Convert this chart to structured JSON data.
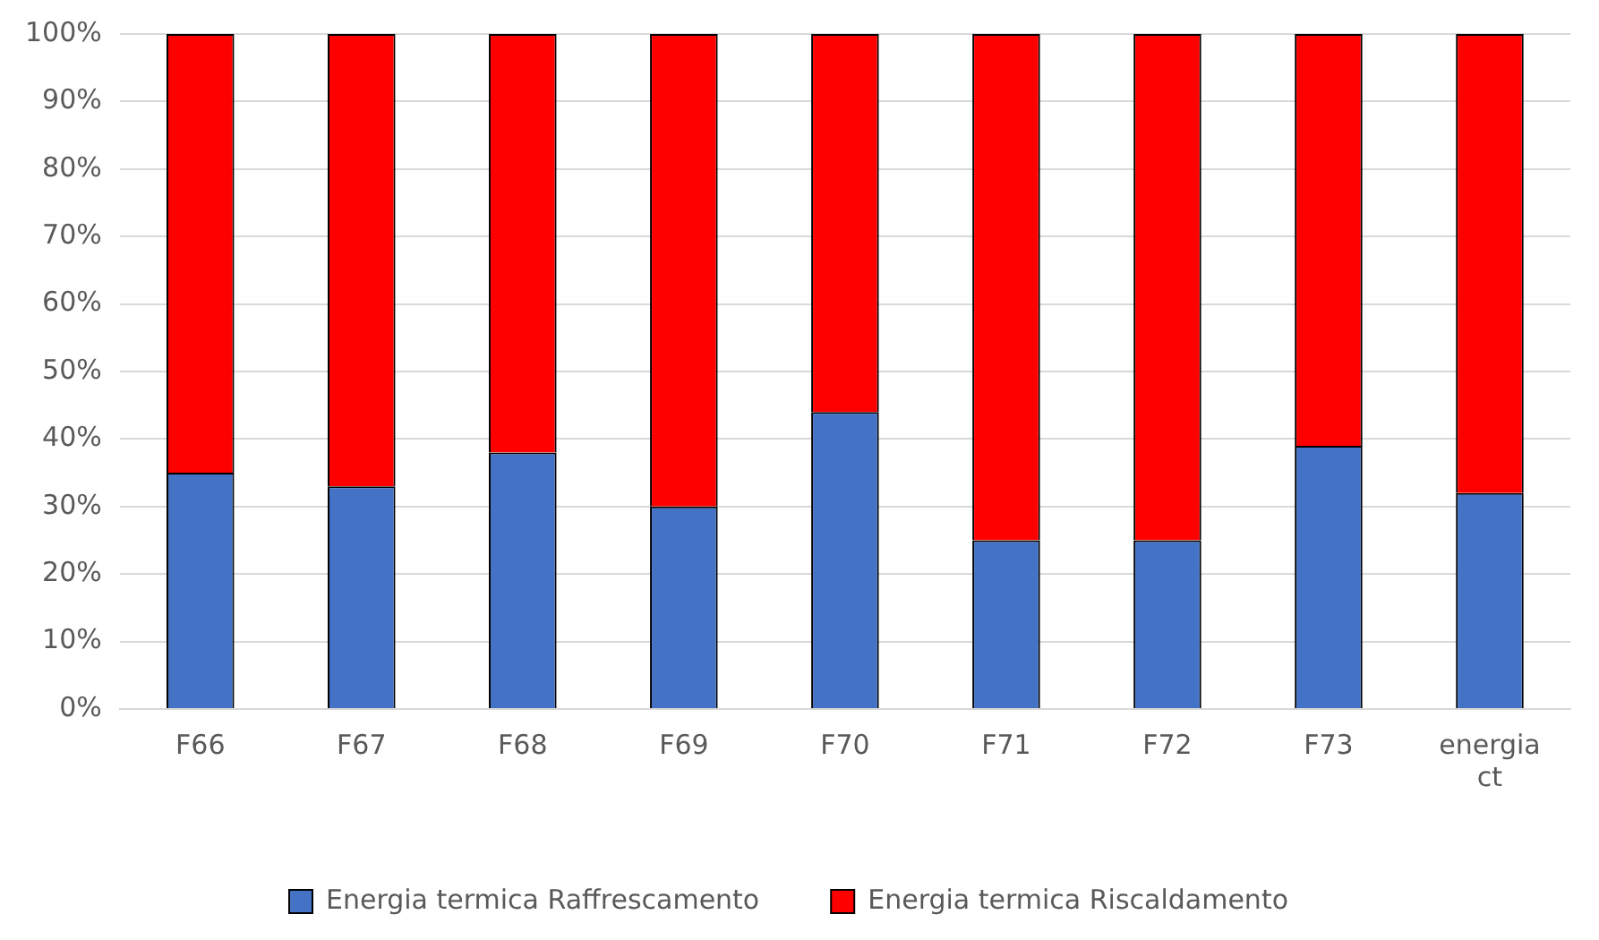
{
  "chart_data": {
    "type": "bar",
    "stacked": true,
    "categories": [
      "F66",
      "F67",
      "F68",
      "F69",
      "F70",
      "F71",
      "F72",
      "F73",
      "energia ct"
    ],
    "series": [
      {
        "name": "Energia termica Raffrescamento",
        "color": "#4472c4",
        "values": [
          35,
          33,
          38,
          30,
          44,
          25,
          25,
          39,
          32
        ]
      },
      {
        "name": "Energia termica Riscaldamento",
        "color": "#ff0000",
        "values": [
          65,
          67,
          62,
          70,
          56,
          75,
          75,
          61,
          68
        ]
      }
    ],
    "ylim": [
      0,
      100
    ],
    "yticks": [
      {
        "value": 0,
        "label": "0%"
      },
      {
        "value": 10,
        "label": "10%"
      },
      {
        "value": 20,
        "label": "20%"
      },
      {
        "value": 30,
        "label": "30%"
      },
      {
        "value": 40,
        "label": "40%"
      },
      {
        "value": 50,
        "label": "50%"
      },
      {
        "value": 60,
        "label": "60%"
      },
      {
        "value": 70,
        "label": "70%"
      },
      {
        "value": 80,
        "label": "80%"
      },
      {
        "value": 90,
        "label": "90%"
      },
      {
        "value": 100,
        "label": "100%"
      }
    ],
    "grid": "y",
    "legend": "bottom"
  }
}
